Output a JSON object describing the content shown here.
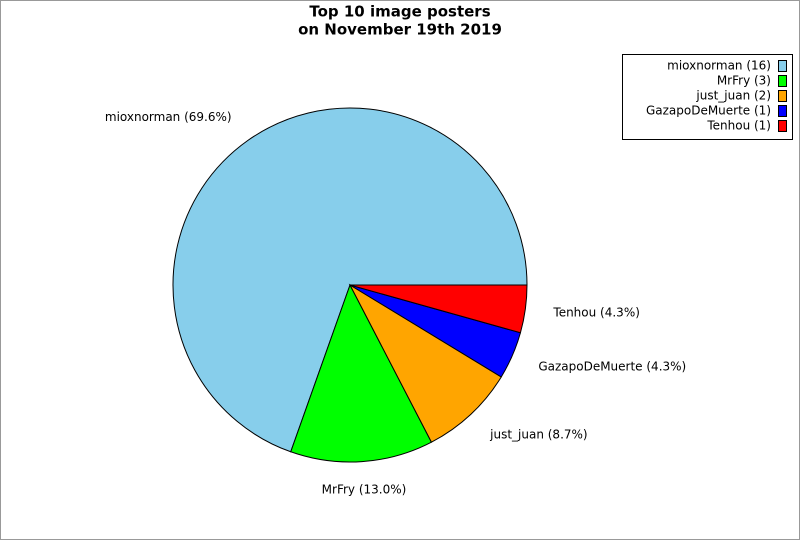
{
  "chart_data": {
    "type": "pie",
    "title": "Top 10 image posters",
    "subtitle": "on November 19th 2019",
    "categories": [
      "mioxnorman",
      "MrFry",
      "just_juan",
      "GazapoDeMuerte",
      "Tenhou"
    ],
    "values": [
      16,
      3,
      2,
      1,
      1
    ],
    "slice_labels": [
      "mioxnorman (69.6%)",
      "MrFry (13.0%)",
      "just_juan (8.7%)",
      "GazapoDeMuerte (4.3%)",
      "Tenhou (4.3%)"
    ],
    "legend_labels": [
      "mioxnorman (16)",
      "MrFry (3)",
      "just_juan (2)",
      "GazapoDeMuerte (1)",
      "Tenhou (1)"
    ],
    "colors": [
      "#87ceeb",
      "#00ff00",
      "#ffa500",
      "#0000ff",
      "#ff0000"
    ],
    "legend": "top-right"
  }
}
